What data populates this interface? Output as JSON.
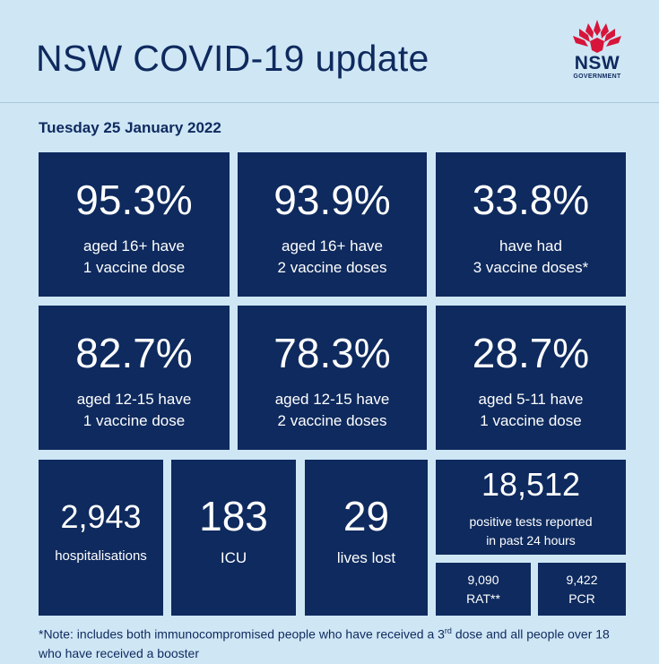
{
  "title": "NSW COVID-19 update",
  "logo": {
    "text": "NSW",
    "subtext": "GOVERNMENT",
    "colors": {
      "waratah": "#d7153a",
      "navy": "#0e2a5e"
    }
  },
  "date": "Tuesday 25 January 2022",
  "stats": [
    {
      "value": "95.3%",
      "line1": "aged 16+ have",
      "line2": "1 vaccine dose"
    },
    {
      "value": "93.9%",
      "line1": "aged 16+ have",
      "line2": "2 vaccine doses"
    },
    {
      "value": "33.8%",
      "line1": "have had",
      "line2": "3 vaccine doses*"
    },
    {
      "value": "82.7%",
      "line1": "aged 12-15 have",
      "line2": "1 vaccine dose"
    },
    {
      "value": "78.3%",
      "line1": "aged 12-15 have",
      "line2": "2 vaccine doses"
    },
    {
      "value": "28.7%",
      "line1": "aged 5-11 have",
      "line2": "1 vaccine dose"
    }
  ],
  "hospital": [
    {
      "value": "2,943",
      "label": "hospitalisations"
    },
    {
      "value": "183",
      "label": "ICU"
    },
    {
      "value": "29",
      "label": "lives lost"
    }
  ],
  "tests": {
    "value": "18,512",
    "line1": "positive tests reported",
    "line2": "in past 24 hours",
    "rat": {
      "value": "9,090",
      "label": "RAT**"
    },
    "pcr": {
      "value": "9,422",
      "label": "PCR"
    }
  },
  "note": {
    "part1": "*Note: includes both immunocompromised people who have received a 3",
    "sup": "rd",
    "part2": " dose and all people over 18 who have received a booster"
  },
  "colors": {
    "background": "#cfe6f5",
    "tile": "#0e2a5e"
  }
}
